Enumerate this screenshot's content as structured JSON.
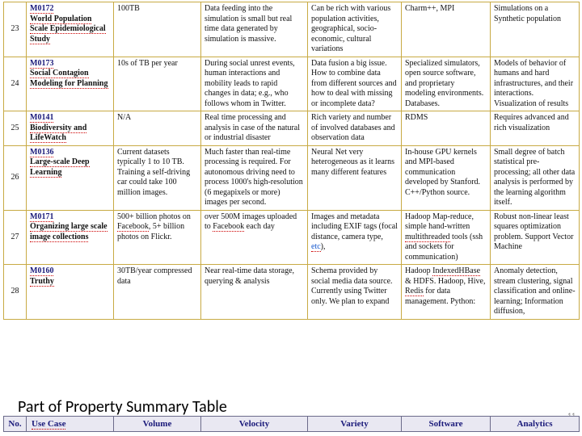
{
  "caption": "Part of Property Summary Table",
  "page_number": "11",
  "header": {
    "no": "No.",
    "use_case": "Use Case",
    "volume": "Volume",
    "velocity": "Velocity",
    "variety": "Variety",
    "software": "Software",
    "analytics": "Analytics"
  },
  "rows": [
    {
      "num": "23",
      "case_id": "M0172",
      "case_title": "World Population Scale Epidemiological Study",
      "volume": "100TB",
      "velocity": "Data feeding into the simulation is small but real time data generated by simulation is massive.",
      "variety": "Can be rich with various population activities, geographical, socio-economic, cultural variations",
      "software": "Charm++, MPI",
      "analytics": "Simulations on a Synthetic population"
    },
    {
      "num": "24",
      "case_id": "M0173",
      "case_title": "Social Contagion Modeling for Planning",
      "volume": "10s of TB per year",
      "velocity": "During social unrest events, human interactions and mobility leads to rapid changes in data; e.g., who follows whom in Twitter.",
      "variety": "Data fusion a big issue. How to combine data from different sources and how to deal with missing or incomplete data?",
      "software": "Specialized simulators, open source software, and proprietary modeling environments. Databases.",
      "analytics": "Models of behavior of humans and hard infrastructures, and their interactions. Visualization of results"
    },
    {
      "num": "25",
      "case_id": "M0141",
      "case_title": "Biodiversity and LifeWatch",
      "volume": "N/A",
      "velocity": "Real time processing and analysis in case of the natural or industrial disaster",
      "variety": "Rich variety and number of involved databases and observation data",
      "software": "RDMS",
      "analytics": "Requires advanced and rich visualization"
    },
    {
      "num": "26",
      "case_id": "M0136",
      "case_title": "Large-scale Deep Learning",
      "volume": "Current datasets typically 1 to 10 TB. Training a self-driving car could take 100 million images.",
      "velocity": "Much faster than real-time processing is required. For autonomous driving need to process 1000's high-resolution (6 megapixels or more) images per second.",
      "variety": "Neural Net very heterogeneous as it learns many different features",
      "software": "In-house GPU kernels and MPI-based communication developed by Stanford. C++/Python source.",
      "analytics": "Small degree of batch statistical pre-processing; all other data analysis is performed by the learning algorithm itself."
    },
    {
      "num": "27",
      "case_id": "M0171",
      "case_title": "Organizing large scale image collections",
      "volume_pre": "500+ billion photos on ",
      "volume_link": "Facebook",
      "volume_post": ", 5+ billion photos on Flickr.",
      "velocity_pre": "over 500M images uploaded to ",
      "velocity_link": "Facebook",
      "velocity_post": " each day",
      "variety_pre": "Images and metadata including EXIF tags (focal distance, camera type, ",
      "variety_link": "etc",
      "variety_post": "),",
      "software_pre": "Hadoop Map-reduce, simple hand-written ",
      "software_link": "multithreaded",
      "software_post": " tools (ssh and sockets for communication)",
      "analytics": "Robust non-linear least squares optimization problem. Support Vector Machine"
    },
    {
      "num": "28",
      "case_id": "M0160",
      "case_title": "Truthy",
      "volume": "30TB/year compressed data",
      "velocity": "Near real-time data storage, querying & analysis",
      "variety": "Schema provided by social media data source. Currently using Twitter only. We plan to expand",
      "software_pre": "Hadoop ",
      "software_link": "IndexedHBase",
      "software_post": " & HDFS. Hadoop, Hive, ",
      "software_link2": "Redis",
      "software_post2": " for data management. Python:",
      "analytics": "Anomaly detection, stream clustering, signal classification and online-learning; Information diffusion,"
    }
  ]
}
